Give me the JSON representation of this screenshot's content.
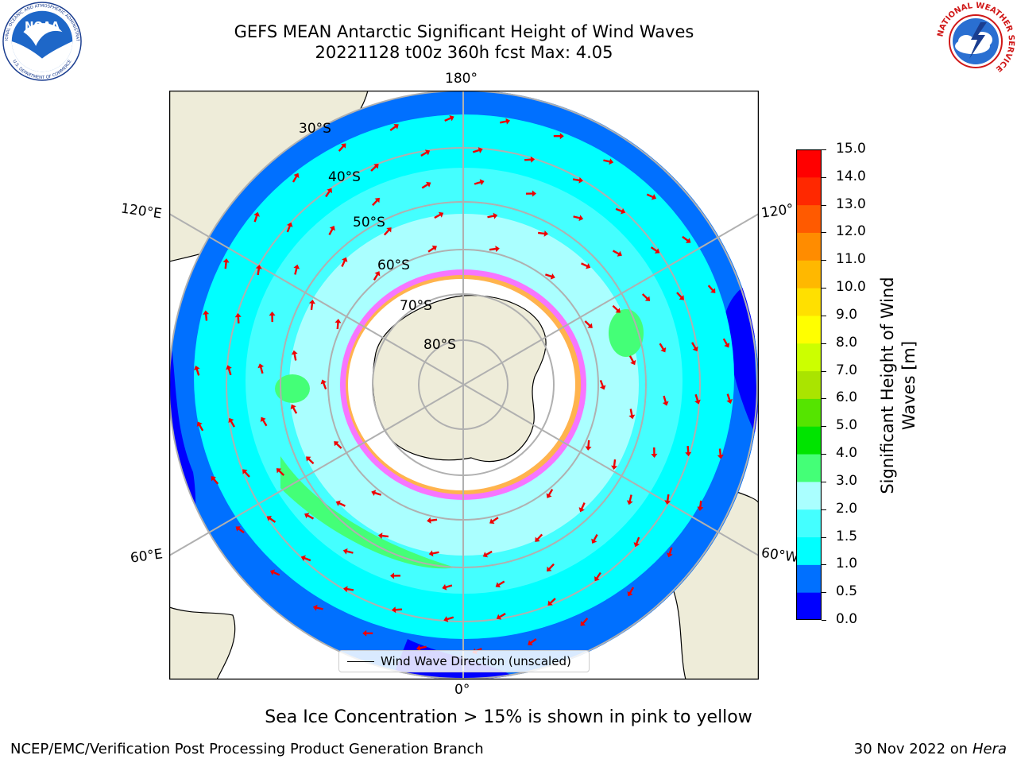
{
  "title": {
    "line1": "GEFS MEAN Antarctic Significant Height of Wind Waves",
    "line2": "20221128 t00z 360h fcst   Max: 4.05"
  },
  "logos": {
    "left": {
      "name": "NOAA",
      "arc_text": "NATIONAL OCEANIC AND ATMOSPHERIC ADMINISTRATION",
      "bottom_text": "U.S. DEPARTMENT OF COMMERCE"
    },
    "right": {
      "arc_text": "NATIONAL WEATHER SERVICE"
    }
  },
  "map": {
    "projection": "south-polar-stereographic",
    "longitude_labels": {
      "top": "180°",
      "bottom": "0°",
      "left_upper": "120°E",
      "left_lower": "60°E",
      "right_upper": "120°",
      "right_lower": "60°W"
    },
    "latitude_labels": [
      "30°S",
      "40°S",
      "50°S",
      "60°S",
      "70°S",
      "80°S"
    ],
    "colors": {
      "land": "#eeecd9",
      "sea_ice": "#ffffff",
      "arrows": "#ee0000"
    },
    "legend_label": "Wind Wave Direction (unscaled)"
  },
  "colorbar": {
    "title": "Significant Height of Wind Waves [m]",
    "ticks": [
      "0.0",
      "0.5",
      "1.0",
      "1.5",
      "2.0",
      "3.0",
      "4.0",
      "5.0",
      "6.0",
      "7.0",
      "8.0",
      "9.0",
      "10.0",
      "11.0",
      "12.0",
      "13.0",
      "14.0",
      "15.0"
    ],
    "colors": [
      "#0000ff",
      "#0070ff",
      "#00ffff",
      "#44ffff",
      "#aaffff",
      "#44ff77",
      "#00e400",
      "#55e400",
      "#aae400",
      "#ccff00",
      "#ffff00",
      "#ffe000",
      "#ffb800",
      "#ff8c00",
      "#ff5a00",
      "#ff2800",
      "#ff0000"
    ]
  },
  "footnote": "Sea Ice Concentration > 15% is shown in pink to yellow",
  "footer": {
    "credit": "NCEP/EMC/Verification Post Processing Product Generation Branch",
    "date": "30 Nov 2022 on",
    "host": "Hera"
  }
}
